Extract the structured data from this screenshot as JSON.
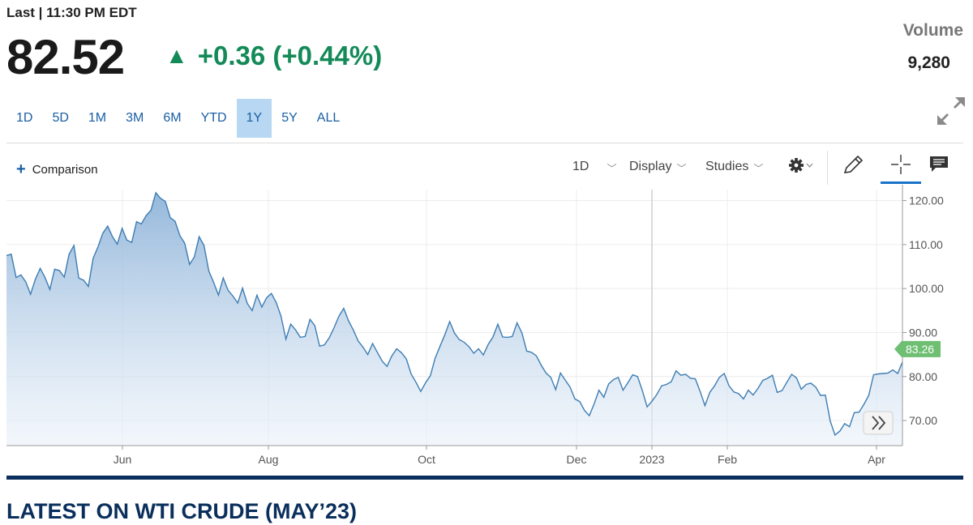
{
  "quote": {
    "last_label": "Last | 11:30 PM EDT",
    "price": "82.52",
    "change_arrow": "▲",
    "change": "+0.36 (+0.44%)",
    "volume_label": "Volume",
    "volume_value": "9,280",
    "up_color": "#138a58"
  },
  "ranges": [
    "1D",
    "5D",
    "1M",
    "3M",
    "6M",
    "YTD",
    "1Y",
    "5Y",
    "ALL"
  ],
  "active_range": "1Y",
  "toolbar": {
    "comparison_label": "Comparison",
    "interval_label": "1D",
    "display_label": "Display",
    "studies_label": "Studies",
    "icons": [
      "settings-gear-icon",
      "pencil-icon",
      "crosshair-icon",
      "comment-icon",
      "expand-icon",
      "scroll-forward-icon"
    ]
  },
  "chart_data": {
    "type": "area",
    "x_ticks": [
      "Jun",
      "Aug",
      "Oct",
      "Dec",
      "2023",
      "Feb",
      "Apr"
    ],
    "y_ticks": [
      "120.00",
      "110.00",
      "100.00",
      "90.00",
      "80.00",
      "70.00"
    ],
    "ylim": [
      64.3,
      122.5
    ],
    "grid": true,
    "current_price_label": "83.26",
    "current_price_color": "#6fbf73",
    "line_color": "#3d7db3",
    "series": [
      {
        "values": [
          107.5,
          107.8,
          102.5,
          103.1,
          101.5,
          98.7,
          102.1,
          104.6,
          102.5,
          99.8,
          104.4,
          104.1,
          102.6,
          107.8,
          109.8,
          102.4,
          101.9,
          100.5,
          106.9,
          109.5,
          112.6,
          114.2,
          111.8,
          110.1,
          113.7,
          111.0,
          110.5,
          115.2,
          114.7,
          116.6,
          117.8,
          121.8,
          120.5,
          119.8,
          116.1,
          115.3,
          112.0,
          110.3,
          105.5,
          107.2,
          111.8,
          109.8,
          104.0,
          101.4,
          98.5,
          102.4,
          99.6,
          98.3,
          96.7,
          100.1,
          96.6,
          95.0,
          98.5,
          95.8,
          97.9,
          98.9,
          96.8,
          93.7,
          88.5,
          91.9,
          90.6,
          88.9,
          89.1,
          93.0,
          91.6,
          86.9,
          87.2,
          88.8,
          91.1,
          93.7,
          95.5,
          92.7,
          90.6,
          88.1,
          86.7,
          85.0,
          87.5,
          85.5,
          83.5,
          82.3,
          84.7,
          86.3,
          85.4,
          84.0,
          80.6,
          78.7,
          76.6,
          78.6,
          80.2,
          84.2,
          86.9,
          89.5,
          92.5,
          89.9,
          88.4,
          87.8,
          86.8,
          85.3,
          86.3,
          84.9,
          87.3,
          89.0,
          91.9,
          89.0,
          88.9,
          89.1,
          92.2,
          89.9,
          85.8,
          85.5,
          84.7,
          82.6,
          80.8,
          79.8,
          77.0,
          80.8,
          79.2,
          77.6,
          74.9,
          74.3,
          72.3,
          71.1,
          73.8,
          76.9,
          75.3,
          78.3,
          79.3,
          79.8,
          76.9,
          78.6,
          80.4,
          80.0,
          76.8,
          73.1,
          74.4,
          75.9,
          77.9,
          78.2,
          78.8,
          81.3,
          80.3,
          80.5,
          79.6,
          79.5,
          76.6,
          73.4,
          76.4,
          77.9,
          79.8,
          80.7,
          77.9,
          76.5,
          76.1,
          74.9,
          76.9,
          75.8,
          77.3,
          79.1,
          79.6,
          80.3,
          76.4,
          76.8,
          78.7,
          80.5,
          79.7,
          77.1,
          78.2,
          78.5,
          77.6,
          75.7,
          75.8,
          69.9,
          66.7,
          67.6,
          69.3,
          68.6,
          71.8,
          71.9,
          73.7,
          75.7,
          80.4,
          80.6,
          80.7,
          80.8,
          81.5,
          80.7,
          83.3
        ]
      }
    ]
  },
  "headline": "LATEST ON WTI CRUDE (MAY’23)"
}
